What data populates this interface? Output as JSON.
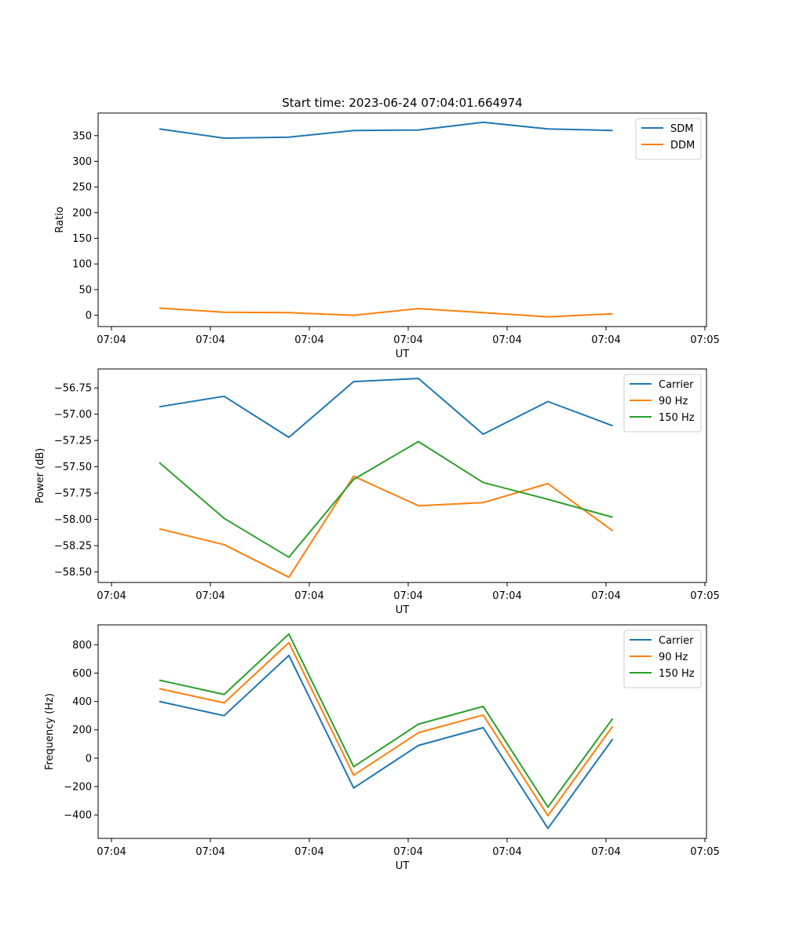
{
  "title": "Start time: 2023-06-24 07:04:01.664974",
  "chart_data": [
    {
      "type": "line",
      "title": "Start time: 2023-06-24 07:04:01.664974",
      "xlabel": "UT",
      "ylabel": "Ratio",
      "xticks": [
        "07:04",
        "07:04",
        "07:04",
        "07:04",
        "07:04",
        "07:04",
        "07:05"
      ],
      "yticks": [
        0,
        50,
        100,
        150,
        200,
        250,
        300,
        350
      ],
      "ylim": [
        -22,
        394
      ],
      "legend": "top-right",
      "series": [
        {
          "name": "SDM",
          "color": "#1f77b4",
          "values": [
            363,
            345,
            347,
            360,
            361,
            376,
            363,
            360
          ]
        },
        {
          "name": "DDM",
          "color": "#ff7f0e",
          "values": [
            14,
            6,
            5,
            0,
            13,
            5,
            -3,
            3
          ]
        }
      ]
    },
    {
      "type": "line",
      "title": "",
      "xlabel": "UT",
      "ylabel": "Power (dB)",
      "xticks": [
        "07:04",
        "07:04",
        "07:04",
        "07:04",
        "07:04",
        "07:04",
        "07:05"
      ],
      "yticks": [
        -58.5,
        -58.25,
        -58.0,
        -57.75,
        -57.5,
        -57.25,
        -57.0,
        -56.75
      ],
      "ytick_labels": [
        "−58.50",
        "−58.25",
        "−58.00",
        "−57.75",
        "−57.50",
        "−57.25",
        "−57.00",
        "−56.75"
      ],
      "ylim": [
        -58.6,
        -56.57
      ],
      "legend": "top-right",
      "series": [
        {
          "name": "Carrier",
          "color": "#1f77b4",
          "values": [
            -56.93,
            -56.83,
            -57.22,
            -56.69,
            -56.66,
            -57.19,
            -56.88,
            -57.11
          ]
        },
        {
          "name": "90 Hz",
          "color": "#ff7f0e",
          "values": [
            -58.09,
            -58.24,
            -58.55,
            -57.59,
            -57.87,
            -57.84,
            -57.66,
            -58.11
          ]
        },
        {
          "name": "150 Hz",
          "color": "#2ca02c",
          "values": [
            -57.46,
            -57.99,
            -58.36,
            -57.62,
            -57.26,
            -57.65,
            -57.81,
            -57.98
          ]
        }
      ]
    },
    {
      "type": "line",
      "title": "",
      "xlabel": "UT",
      "ylabel": "Frequency (Hz)",
      "xticks": [
        "07:04",
        "07:04",
        "07:04",
        "07:04",
        "07:04",
        "07:04",
        "07:05"
      ],
      "yticks": [
        -400,
        -200,
        0,
        200,
        400,
        600,
        800
      ],
      "ytick_labels": [
        "−400",
        "−200",
        "0",
        "200",
        "400",
        "600",
        "800"
      ],
      "ylim": [
        -565,
        940
      ],
      "legend": "top-right",
      "series": [
        {
          "name": "Carrier",
          "color": "#1f77b4",
          "values": [
            400,
            300,
            725,
            -210,
            90,
            215,
            -495,
            135
          ]
        },
        {
          "name": "90 Hz",
          "color": "#ff7f0e",
          "values": [
            490,
            390,
            815,
            -120,
            180,
            305,
            -405,
            225
          ]
        },
        {
          "name": "150 Hz",
          "color": "#2ca02c",
          "values": [
            550,
            450,
            875,
            -60,
            240,
            365,
            -345,
            280
          ]
        }
      ]
    }
  ]
}
